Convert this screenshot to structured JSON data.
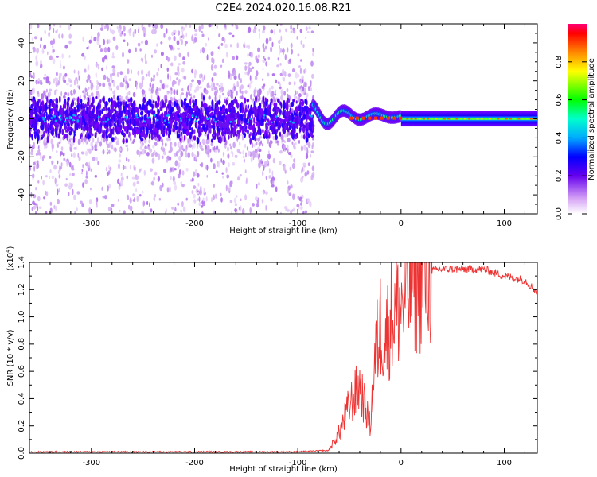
{
  "title": "C2E4.2024.020.16.08.R21",
  "chart_data": [
    {
      "type": "heatmap",
      "name": "spectrogram",
      "xlabel": "Height of straight line (km)",
      "ylabel": "Frequency (Hz)",
      "xlim": [
        -360,
        132
      ],
      "ylim": [
        -50,
        50
      ],
      "xticks": [
        -300,
        -200,
        -100,
        0,
        100
      ],
      "yticks": [
        -40,
        -20,
        0,
        20,
        40
      ],
      "colorbar": {
        "label": "Normalized spectral amplitude",
        "range": [
          0,
          1
        ],
        "ticks": [
          "0.0",
          "0.2",
          "0.4",
          "0.6",
          "0.8"
        ],
        "tick_values": [
          0.0,
          0.2,
          0.4,
          0.6,
          0.8
        ]
      },
      "features": {
        "noise_region_end_km": -85,
        "signal_band_center_hz": 0,
        "signal_band_halfwidth_hz": 4
      }
    },
    {
      "type": "line",
      "name": "snr",
      "xlabel": "Height of straight line (km)",
      "ylabel": "SNR (10 * v/v)",
      "scale_label": "(x10",
      "scale_exponent": "4",
      "scale_close": ")",
      "xlim": [
        -360,
        132
      ],
      "ylim": [
        0,
        1.4
      ],
      "xticks": [
        -300,
        -200,
        -100,
        0,
        100
      ],
      "yticks": [
        "0.0",
        "0.2",
        "0.4",
        "0.6",
        "0.8",
        "1.0",
        "1.2",
        "1.4"
      ],
      "ytick_values": [
        0.0,
        0.2,
        0.4,
        0.6,
        0.8,
        1.0,
        1.2,
        1.4
      ],
      "series": [
        {
          "name": "SNR",
          "color": "#ee3333",
          "x": [
            -360,
            -100,
            -70,
            -60,
            -50,
            -40,
            -30,
            -25,
            -20,
            -15,
            -10,
            -5,
            0,
            10,
            20,
            30,
            40,
            60,
            80,
            100,
            120,
            132
          ],
          "y": [
            0.01,
            0.01,
            0.02,
            0.15,
            0.35,
            0.5,
            0.2,
            0.7,
            0.95,
            0.85,
            1.0,
            1.05,
            1.1,
            1.25,
            1.3,
            1.34,
            1.35,
            1.35,
            1.35,
            1.3,
            1.27,
            1.18
          ]
        }
      ]
    }
  ]
}
